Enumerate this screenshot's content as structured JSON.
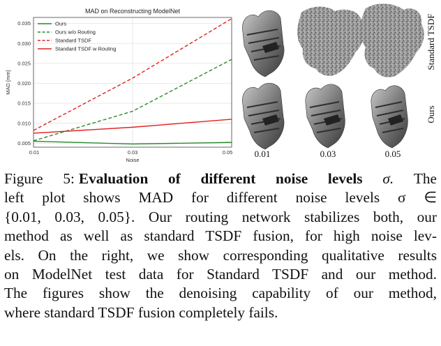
{
  "figure": {
    "chart_data": {
      "type": "line",
      "title": "MAD on Reconstructing ModelNet",
      "xlabel": "Noise",
      "ylabel": "MAD [mm]",
      "x": [
        0.01,
        0.03,
        0.05
      ],
      "x_tick_labels": [
        "0.01",
        "0.03",
        "0.05"
      ],
      "y_tick_labels": [
        "0.005",
        "0.010",
        "0.015",
        "0.020",
        "0.025",
        "0.030",
        "0.035"
      ],
      "xlim": [
        0.01,
        0.05
      ],
      "ylim": [
        0.004,
        0.0365
      ],
      "grid": true,
      "legend_position": "top-left",
      "series": [
        {
          "name": "Ours",
          "values": [
            0.0055,
            0.0048,
            0.0052
          ],
          "color": "#2a8a2a",
          "style": "solid"
        },
        {
          "name": "Ours w/o Routing",
          "values": [
            0.0056,
            0.013,
            0.026
          ],
          "color": "#2a8a2a",
          "style": "dashed"
        },
        {
          "name": "Standard TSDF",
          "values": [
            0.0082,
            0.0213,
            0.0362
          ],
          "color": "#e02020",
          "style": "dashed"
        },
        {
          "name": "Standard TSDF w Routing",
          "values": [
            0.0075,
            0.009,
            0.011
          ],
          "color": "#e02020",
          "style": "solid"
        }
      ]
    },
    "qualitative": {
      "row_labels": [
        "Standard TSDF",
        "Ours"
      ],
      "column_labels": [
        "0.01",
        "0.03",
        "0.05"
      ]
    }
  },
  "caption": {
    "label": "Figure 5:",
    "title": "Evaluation of different noise levels",
    "sigma": "σ.",
    "line1_tail": "The",
    "line2": "left plot shows MAD for different noise levels σ ∈",
    "line3": "{0.01, 0.03, 0.05}. Our routing network stabilizes both, our",
    "line4": "method as well as standard TSDF fusion, for high noise lev-",
    "line5": "els. On the right, we show corresponding qualitative results",
    "line6": "on ModelNet test data for Standard TSDF and our method.",
    "line7": "The figures show the denoising capability of our method,",
    "line8": "where standard TSDF fusion completely fails."
  }
}
